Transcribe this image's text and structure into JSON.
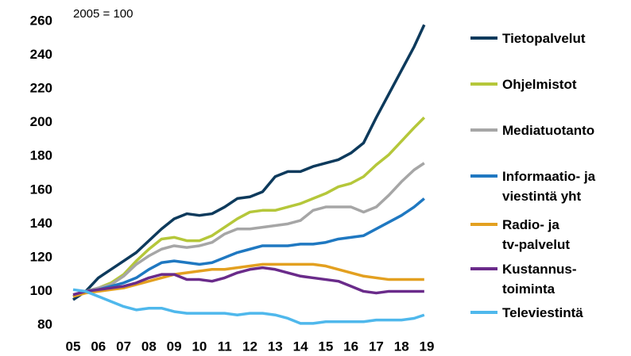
{
  "chart_data": {
    "type": "line",
    "annotation": "2005 = 100",
    "x": [
      5,
      5.5,
      6,
      6.5,
      7,
      7.5,
      8,
      8.5,
      9,
      9.5,
      10,
      10.5,
      11,
      11.5,
      12,
      12.5,
      13,
      13.5,
      14,
      14.5,
      15,
      15.5,
      16,
      16.5,
      17,
      17.5,
      18,
      18.5,
      18.9
    ],
    "series": [
      {
        "name": "Tietopalvelut",
        "color": "#0d3a5c",
        "values": [
          95,
          100,
          108,
          113,
          118,
          123,
          130,
          137,
          143,
          146,
          145,
          146,
          150,
          155,
          156,
          159,
          168,
          171,
          171,
          174,
          176,
          178,
          182,
          188,
          203,
          217,
          231,
          245,
          258
        ]
      },
      {
        "name": "Ohjelmistot",
        "color": "#b5c73a",
        "values": [
          97,
          100,
          102,
          105,
          110,
          118,
          125,
          131,
          132,
          130,
          130,
          133,
          138,
          143,
          147,
          148,
          148,
          150,
          152,
          155,
          158,
          162,
          164,
          168,
          175,
          181,
          189,
          197,
          203
        ]
      },
      {
        "name": "Mediatuotanto",
        "color": "#a6a6a6",
        "values": [
          97,
          100,
          102,
          104,
          109,
          116,
          121,
          125,
          127,
          126,
          127,
          129,
          134,
          137,
          137,
          138,
          139,
          140,
          142,
          148,
          150,
          150,
          150,
          147,
          150,
          157,
          165,
          172,
          176
        ]
      },
      {
        "name": "Informaatio- ja\nviestintä yht",
        "color": "#1f78c1",
        "values": [
          97,
          100,
          101,
          103,
          105,
          108,
          113,
          117,
          118,
          117,
          116,
          117,
          120,
          123,
          125,
          127,
          127,
          127,
          128,
          128,
          129,
          131,
          132,
          133,
          137,
          141,
          145,
          150,
          155
        ]
      },
      {
        "name": "Radio- ja\ntv-palvelut",
        "color": "#e3a020",
        "values": [
          97,
          99,
          100,
          101,
          102,
          104,
          106,
          108,
          110,
          111,
          112,
          113,
          113,
          114,
          115,
          116,
          116,
          116,
          116,
          116,
          115,
          113,
          111,
          109,
          108,
          107,
          107,
          107,
          107
        ]
      },
      {
        "name": "Kustannus-\ntoiminta",
        "color": "#6a2b8a",
        "values": [
          98,
          100,
          101,
          102,
          103,
          105,
          108,
          110,
          110,
          107,
          107,
          106,
          108,
          111,
          113,
          114,
          113,
          111,
          109,
          108,
          107,
          106,
          103,
          100,
          99,
          100,
          100,
          100,
          100
        ]
      },
      {
        "name": "Televiestintä",
        "color": "#4fb8ec",
        "values": [
          101,
          100,
          97,
          94,
          91,
          89,
          90,
          90,
          88,
          87,
          87,
          87,
          87,
          86,
          87,
          87,
          86,
          84,
          81,
          81,
          82,
          82,
          82,
          82,
          83,
          83,
          83,
          84,
          86
        ]
      }
    ],
    "xlim": [
      5,
      19
    ],
    "xticks": [
      {
        "value": 5,
        "label": "05"
      },
      {
        "value": 6,
        "label": "06"
      },
      {
        "value": 7,
        "label": "07"
      },
      {
        "value": 8,
        "label": "08"
      },
      {
        "value": 9,
        "label": "09"
      },
      10,
      11,
      12,
      13,
      14,
      15,
      16,
      17,
      18,
      19
    ],
    "ylim": [
      80,
      260
    ],
    "yticks": [
      80,
      100,
      120,
      140,
      160,
      180,
      200,
      220,
      240,
      260
    ],
    "grid": false,
    "legend": "right"
  }
}
